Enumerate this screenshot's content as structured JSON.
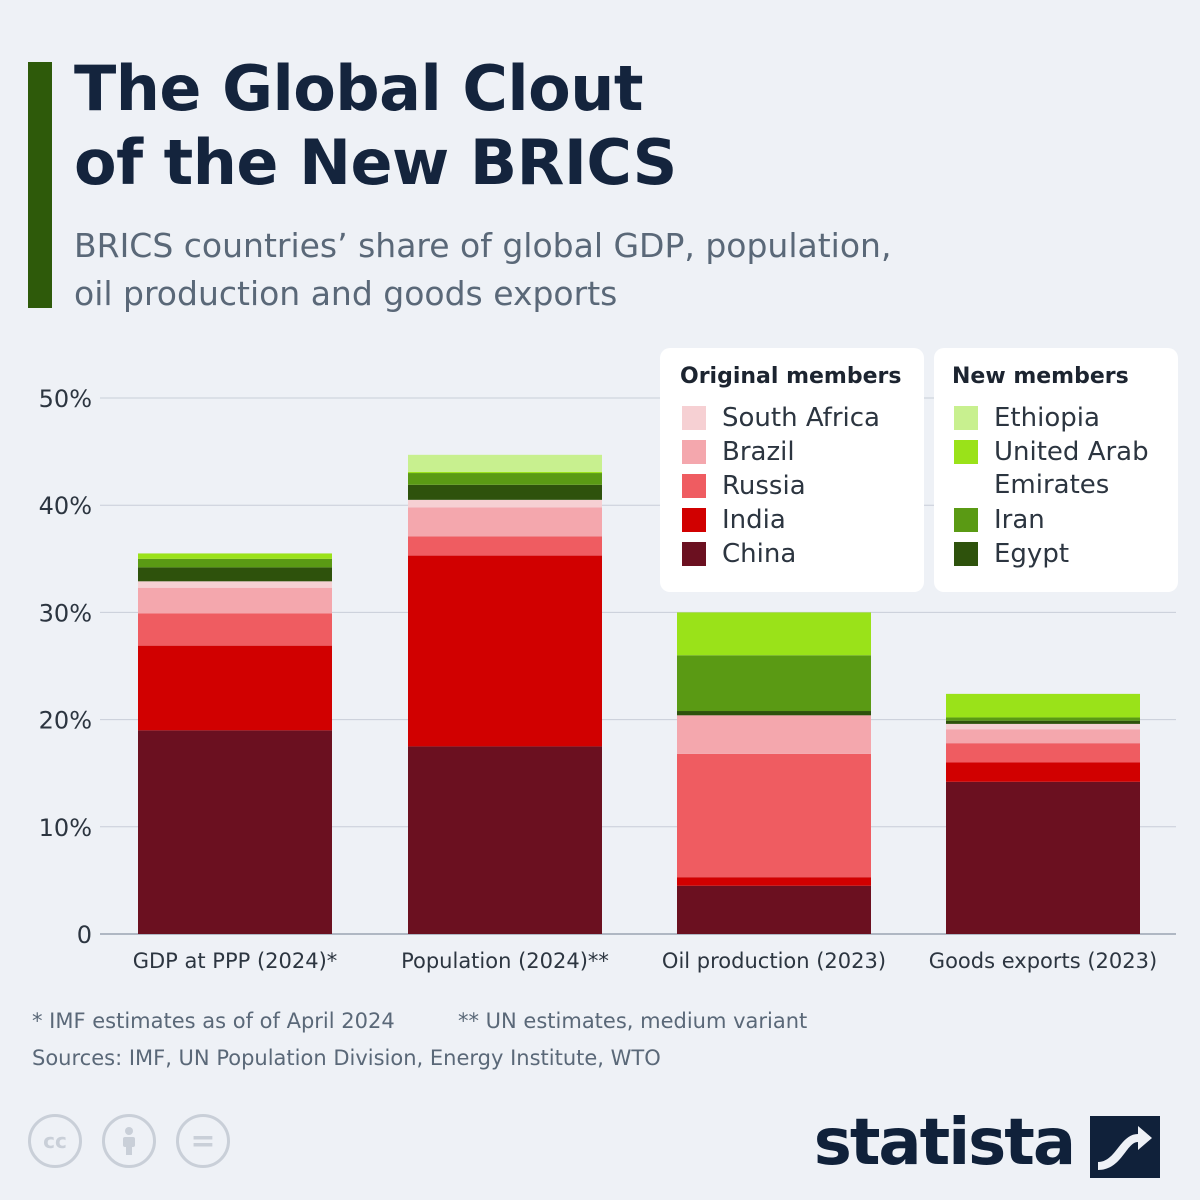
{
  "header": {
    "title_line1": "The Global Clout",
    "title_line2": "of the New BRICS",
    "subtitle_line1": "BRICS countries’ share of global GDP, population,",
    "subtitle_line2": "oil production and goods exports"
  },
  "legend": {
    "original_title": "Original members",
    "new_title": "New members",
    "original": [
      {
        "label": "South Africa",
        "color": "#f6d0d3"
      },
      {
        "label": "Brazil",
        "color": "#f4a7ad"
      },
      {
        "label": "Russia",
        "color": "#ef5c61"
      },
      {
        "label": "India",
        "color": "#d10000"
      },
      {
        "label": "China",
        "color": "#6b1020"
      }
    ],
    "new": [
      {
        "label": "Ethiopia",
        "color": "#c8f08f"
      },
      {
        "label": "United Arab",
        "label2": "Emirates",
        "color": "#9ae219"
      },
      {
        "label": "Iran",
        "color": "#5a9a14"
      },
      {
        "label": "Egypt",
        "color": "#2e520c"
      }
    ]
  },
  "chart_data": {
    "type": "bar",
    "stacked": true,
    "categories": [
      "GDP at PPP (2024)*",
      "Population (2024)**",
      "Oil production (2023)",
      "Goods exports (2023)"
    ],
    "ylim": [
      0,
      50
    ],
    "yticks": [
      0,
      10,
      20,
      30,
      40,
      50
    ],
    "ytick_labels": [
      "0",
      "10%",
      "20%",
      "30%",
      "40%",
      "50%"
    ],
    "grid": true,
    "legend_position": "top-right",
    "series": [
      {
        "name": "China",
        "color": "#6b1020",
        "values": [
          19.0,
          17.5,
          4.5,
          14.2
        ]
      },
      {
        "name": "India",
        "color": "#d10000",
        "values": [
          7.9,
          17.8,
          0.8,
          1.8
        ]
      },
      {
        "name": "Russia",
        "color": "#ef5c61",
        "values": [
          3.0,
          1.8,
          11.5,
          1.8
        ]
      },
      {
        "name": "Brazil",
        "color": "#f4a7ad",
        "values": [
          2.4,
          2.7,
          3.6,
          1.3
        ]
      },
      {
        "name": "South Africa",
        "color": "#f6d0d3",
        "values": [
          0.6,
          0.7,
          0.0,
          0.5
        ]
      },
      {
        "name": "Egypt",
        "color": "#2e520c",
        "values": [
          1.3,
          1.4,
          0.4,
          0.3
        ]
      },
      {
        "name": "Iran",
        "color": "#5a9a14",
        "values": [
          0.8,
          1.1,
          5.2,
          0.3
        ]
      },
      {
        "name": "United Arab Emirates",
        "color": "#9ae219",
        "values": [
          0.5,
          0.1,
          4.0,
          2.2
        ]
      },
      {
        "name": "Ethiopia",
        "color": "#c8f08f",
        "values": [
          0.0,
          1.6,
          0.0,
          0.0
        ]
      }
    ]
  },
  "footer": {
    "note1": "* IMF estimates as of of April 2024",
    "note2": "** UN estimates, medium variant",
    "sources": "Sources: IMF, UN Population Division, Energy Institute, WTO",
    "brand": "statista",
    "cc_label": "cc",
    "eq_label": "="
  }
}
